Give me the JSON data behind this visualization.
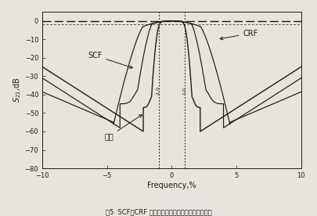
{
  "title": "",
  "xlabel": "Frequency,%",
  "ylabel": "$S_{21}$,dB",
  "xlim": [
    -10.0,
    10.0
  ],
  "ylim": [
    -80,
    5
  ],
  "yticks": [
    0,
    -10,
    -20,
    -30,
    -40,
    -50,
    -60,
    -70,
    -80
  ],
  "xticks": [
    -10.0,
    -5.0,
    0.0,
    5.0,
    10.0
  ],
  "bg_color": "#e8e4dc",
  "line_color": "#1a1a1a",
  "dotted_vline_x1": -1.0,
  "dotted_vline_x2": 1.0,
  "scf_label": "SCF",
  "crf_label": "CRF",
  "ladder_label": "梯型",
  "caption": "图5  SCF、CRF 及梯型结构滤波器频率响应曲线比较"
}
